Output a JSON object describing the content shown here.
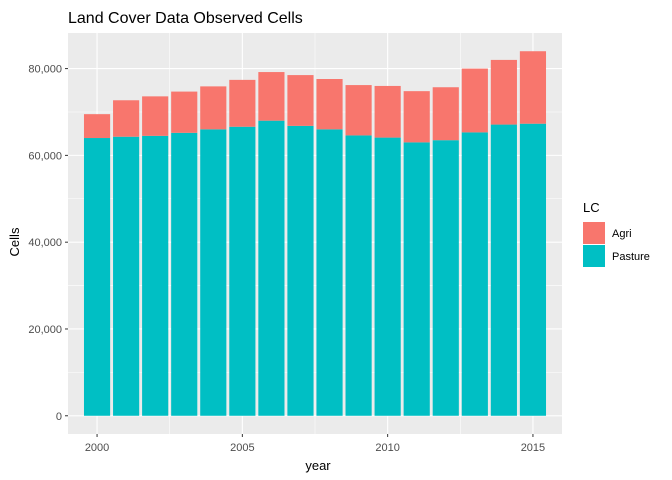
{
  "chart_data": {
    "type": "bar",
    "stacked": true,
    "title": "Land Cover Data Observed Cells",
    "xlabel": "year",
    "ylabel": "Cells",
    "x": [
      2000,
      2001,
      2002,
      2003,
      2004,
      2005,
      2006,
      2007,
      2008,
      2009,
      2010,
      2011,
      2012,
      2013,
      2014,
      2015
    ],
    "series": [
      {
        "name": "Pasture",
        "color": "#00BFC4",
        "values": [
          64000,
          64300,
          64500,
          65200,
          66000,
          66600,
          68000,
          66800,
          66000,
          64600,
          64100,
          63000,
          63500,
          65300,
          67100,
          67300
        ]
      },
      {
        "name": "Agri",
        "color": "#F8766D",
        "values": [
          5500,
          8400,
          9100,
          9500,
          9900,
          10800,
          11200,
          11700,
          11600,
          11600,
          11900,
          11800,
          12200,
          14700,
          14900,
          16700
        ]
      }
    ],
    "xlim": [
      1999,
      2016
    ],
    "ylim": [
      -4200,
      88200
    ],
    "x_ticks": [
      2000,
      2005,
      2010,
      2015
    ],
    "x_tick_labels": [
      "2000",
      "2005",
      "2010",
      "2015"
    ],
    "y_ticks": [
      0,
      20000,
      40000,
      60000,
      80000
    ],
    "y_tick_labels": [
      "0",
      "20,000",
      "40,000",
      "60,000",
      "80,000"
    ],
    "grid": true,
    "panel_background": "#EBEBEB",
    "legend": {
      "title": "LC",
      "position": "right",
      "entries": [
        {
          "label": "Agri",
          "color": "#F8766D"
        },
        {
          "label": "Pasture",
          "color": "#00BFC4"
        }
      ]
    }
  }
}
